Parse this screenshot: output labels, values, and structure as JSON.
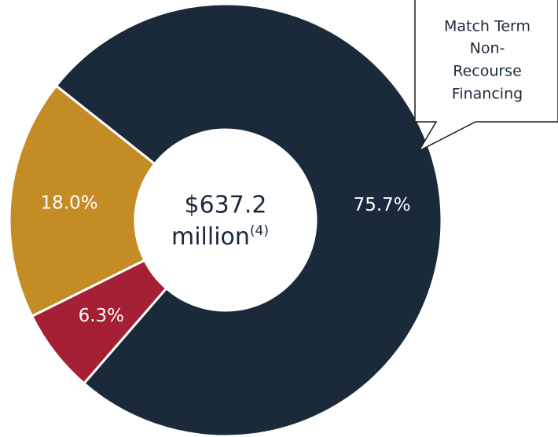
{
  "chart_data": {
    "type": "pie",
    "categories": [
      null,
      null,
      null
    ],
    "values": [
      75.7,
      6.3,
      18.0
    ],
    "value_labels": [
      "75.7%",
      "6.3%",
      "18.0%"
    ],
    "colors": [
      "#1a2a3a",
      "#a51f35",
      "#c48c24"
    ],
    "center_label": [
      "$637.2",
      "million"
    ],
    "center_note": "(4)",
    "annotation": [
      "Match Term",
      "Non-",
      "Recourse",
      "Financing"
    ]
  }
}
